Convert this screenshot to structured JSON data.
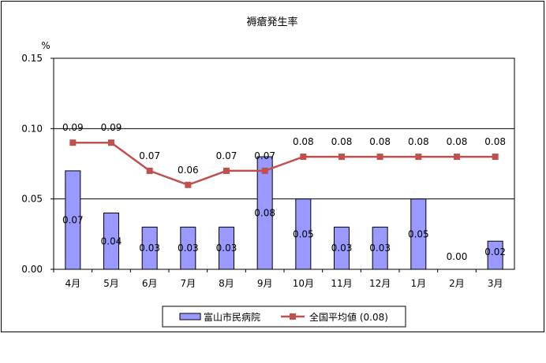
{
  "chart_data": {
    "type": "bar+line",
    "title": "褥瘡発生率",
    "ylabel": "%",
    "ylim": [
      0,
      0.15
    ],
    "yticks": [
      "0.00",
      "0.05",
      "0.10",
      "0.15"
    ],
    "categories": [
      "4月",
      "5月",
      "6月",
      "7月",
      "8月",
      "9月",
      "10月",
      "11月",
      "12月",
      "1月",
      "2月",
      "3月"
    ],
    "series": [
      {
        "name": "富山市民病院",
        "type": "bar",
        "values": [
          0.07,
          0.04,
          0.03,
          0.03,
          0.03,
          0.08,
          0.05,
          0.03,
          0.03,
          0.05,
          0.0,
          0.02
        ],
        "labels": [
          "0.07",
          "0.04",
          "0.03",
          "0.03",
          "0.03",
          "0.08",
          "0.05",
          "0.03",
          "0.03",
          "0.05",
          "0.00",
          "0.02"
        ]
      },
      {
        "name": "全国平均値 (0.08)",
        "type": "line",
        "values": [
          0.09,
          0.09,
          0.07,
          0.06,
          0.07,
          0.07,
          0.08,
          0.08,
          0.08,
          0.08,
          0.08,
          0.08
        ],
        "labels": [
          "0.09",
          "0.09",
          "0.07",
          "0.06",
          "0.07",
          "0.07",
          "0.08",
          "0.08",
          "0.08",
          "0.08",
          "0.08",
          "0.08"
        ]
      }
    ],
    "grid": true,
    "legend": "bottom"
  },
  "colors": {
    "bar_fill": "#9999ff",
    "bar_stroke": "#000000",
    "line": "#c0504d",
    "marker": "#c0504d",
    "grid": "#000000"
  }
}
